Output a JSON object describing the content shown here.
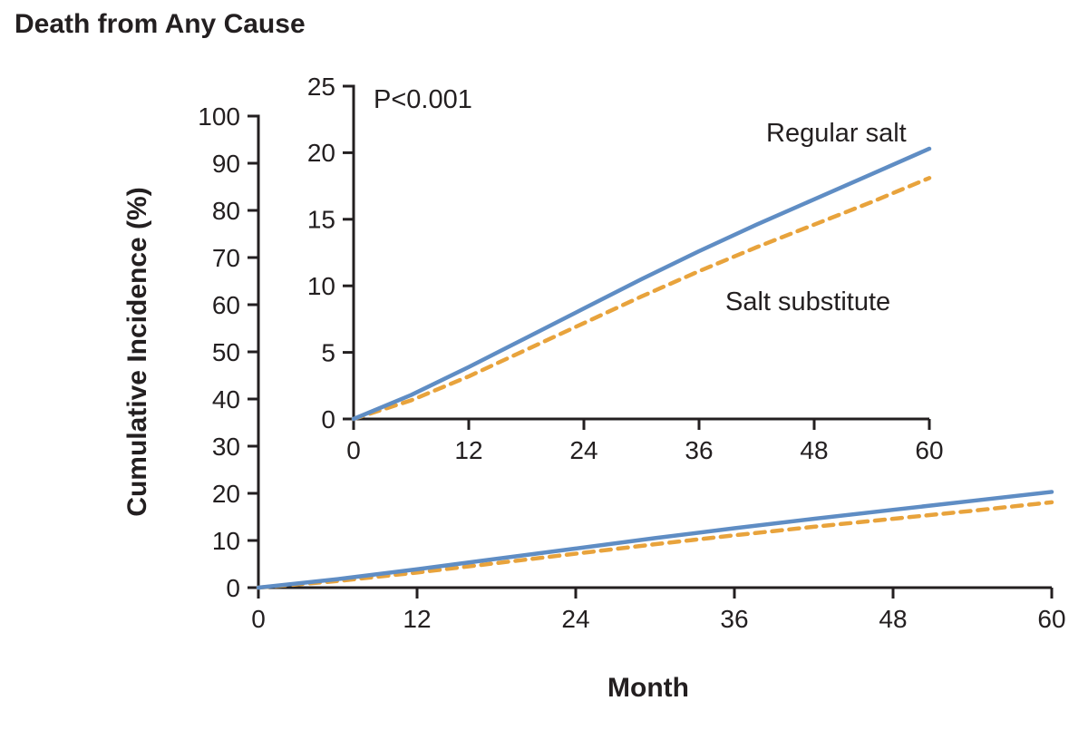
{
  "title": "Death from Any Cause",
  "chart_data": {
    "type": "line",
    "title": "Death from Any Cause",
    "xlabel": "Month",
    "ylabel": "Cumulative Incidence (%)",
    "p_value_label": "P&lt;0.001",
    "p_value_text": "P<0.001",
    "x": [
      0,
      6,
      12,
      18,
      24,
      30,
      36,
      42,
      48,
      54,
      60
    ],
    "series": [
      {
        "name": "Regular salt",
        "color": "#5f8dc4",
        "dash": "solid",
        "values": [
          0,
          1.8,
          3.9,
          6.1,
          8.3,
          10.5,
          12.6,
          14.6,
          16.5,
          18.4,
          20.3
        ]
      },
      {
        "name": "Salt substitute",
        "color": "#e8a33c",
        "dash": "dashed",
        "values": [
          0,
          1.4,
          3.2,
          5.2,
          7.2,
          9.2,
          11.1,
          12.9,
          14.6,
          16.3,
          18.1
        ]
      }
    ],
    "main_axes": {
      "xlim": [
        0,
        60
      ],
      "ylim": [
        0,
        100
      ],
      "xticks": [
        0,
        12,
        24,
        36,
        48,
        60
      ],
      "yticks": [
        0,
        10,
        20,
        30,
        40,
        50,
        60,
        70,
        80,
        90,
        100
      ]
    },
    "inset_axes": {
      "xlim": [
        0,
        60
      ],
      "ylim": [
        0,
        25
      ],
      "xticks": [
        0,
        12,
        24,
        36,
        48,
        60
      ],
      "yticks": [
        0,
        5,
        10,
        15,
        20,
        25
      ]
    },
    "grid": false,
    "legend_position": "in-plot-annotations"
  },
  "colors": {
    "text": "#231f20",
    "axis": "#231f20",
    "regular_salt": "#5f8dc4",
    "salt_substitute": "#e8a33c"
  }
}
